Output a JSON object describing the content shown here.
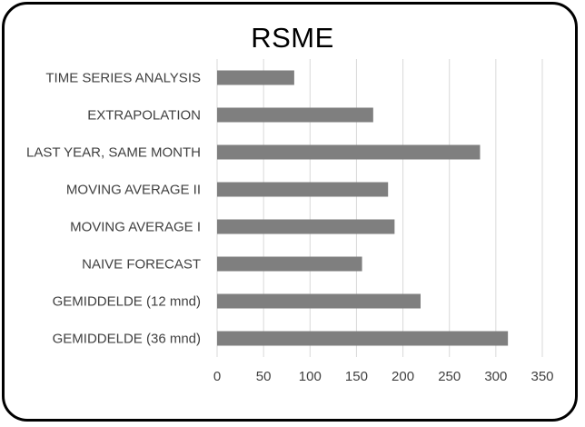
{
  "chart_data": {
    "type": "bar",
    "orientation": "horizontal",
    "title": "RSME",
    "categories": [
      "TIME SERIES ANALYSIS",
      "EXTRAPOLATION",
      "LAST YEAR, SAME MONTH",
      "MOVING AVERAGE II",
      "MOVING AVERAGE I",
      "NAIVE FORECAST",
      "GEMIDDELDE (12 mnd)",
      "GEMIDDELDE (36 mnd)"
    ],
    "values": [
      83,
      168,
      283,
      184,
      191,
      156,
      219,
      313
    ],
    "xlim": [
      0,
      350
    ],
    "xticks": [
      "0",
      "50",
      "100",
      "150",
      "200",
      "250",
      "300",
      "350"
    ],
    "grid": "vertical",
    "legend": "none",
    "colors": {
      "bar": "#7f7f7f",
      "grid": "#d9d9d9",
      "text": "#404040"
    }
  }
}
